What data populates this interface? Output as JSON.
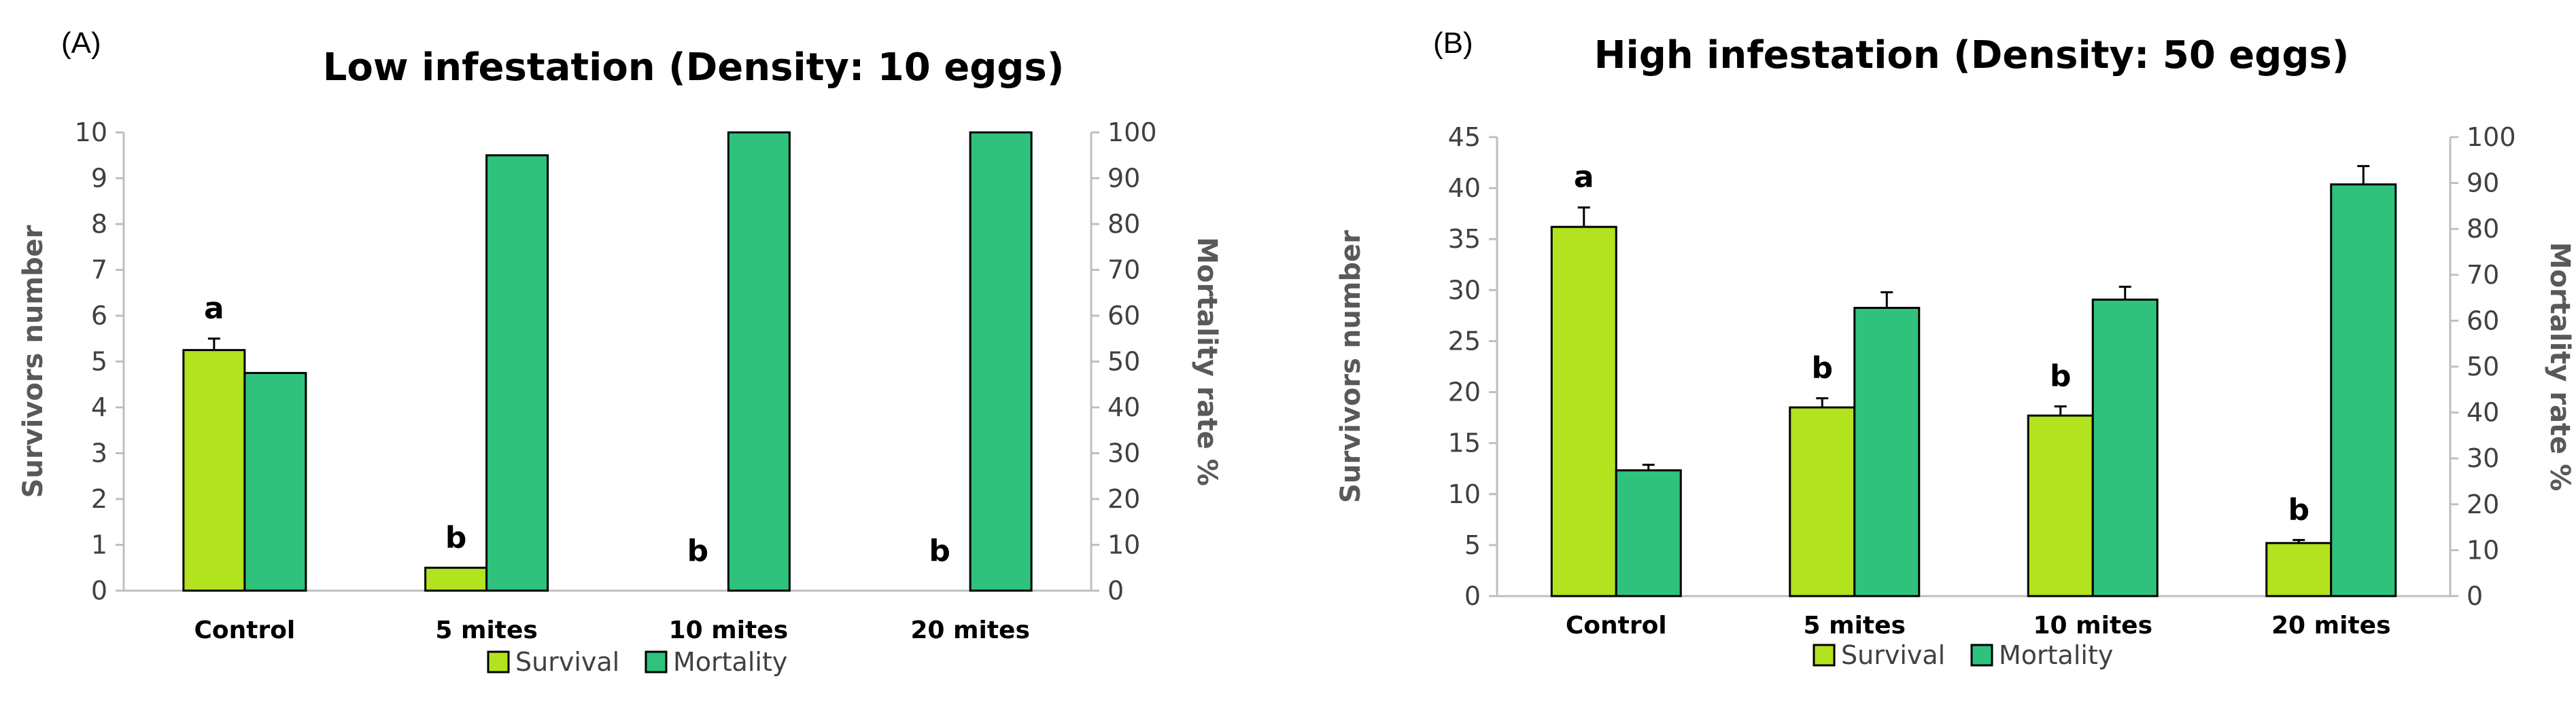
{
  "colors": {
    "survival": "#B3E21F",
    "mortality": "#2FC27C",
    "axis": "#BFBFBF",
    "outline": "#000000"
  },
  "chart_data": [
    {
      "type": "bar",
      "panel_label": "(A)",
      "title": "Low infestation (Density: 10 eggs)",
      "categories": [
        "Control",
        "5 mites",
        "10 mites",
        "20 mites"
      ],
      "ylabel": "Survivors number",
      "ylim": [
        0,
        10
      ],
      "yticks": [
        0,
        1,
        2,
        3,
        4,
        5,
        6,
        7,
        8,
        9,
        10
      ],
      "y2label": "Mortality rate %",
      "y2lim": [
        0,
        100
      ],
      "y2ticks": [
        0,
        10,
        20,
        30,
        40,
        50,
        60,
        70,
        80,
        90,
        100
      ],
      "legend_position": "bottom",
      "series": [
        {
          "name": "Survival",
          "axis": "left",
          "values": [
            5.25,
            0.5,
            0,
            0
          ],
          "errors": [
            0.25,
            0,
            0,
            0
          ]
        },
        {
          "name": "Mortality",
          "axis": "right",
          "values": [
            47.5,
            95,
            100,
            100
          ],
          "errors": [
            0,
            0,
            0,
            0
          ]
        }
      ],
      "annotations": [
        "a",
        "b",
        "b",
        "b"
      ]
    },
    {
      "type": "bar",
      "panel_label": "(B)",
      "title": "High infestation (Density: 50 eggs)",
      "categories": [
        "Control",
        "5 mites",
        "10 mites",
        "20 mites"
      ],
      "ylabel": "Survivors number",
      "ylim": [
        0,
        45
      ],
      "yticks": [
        0,
        5,
        10,
        15,
        20,
        25,
        30,
        35,
        40,
        45
      ],
      "y2label": "Mortality rate %",
      "y2lim": [
        0,
        100
      ],
      "y2ticks": [
        0,
        10,
        20,
        30,
        40,
        50,
        60,
        70,
        80,
        90,
        100
      ],
      "legend_position": "bottom",
      "series": [
        {
          "name": "Survival",
          "axis": "left",
          "values": [
            36.2,
            18.5,
            17.7,
            5.2
          ],
          "errors": [
            1.9,
            0.9,
            0.9,
            0.3
          ]
        },
        {
          "name": "Mortality",
          "axis": "right",
          "values": [
            27.4,
            62.8,
            64.6,
            89.7
          ],
          "errors": [
            1.2,
            3.4,
            2.8,
            4.0
          ]
        }
      ],
      "annotations": [
        "a",
        "b",
        "b",
        "b"
      ]
    }
  ]
}
